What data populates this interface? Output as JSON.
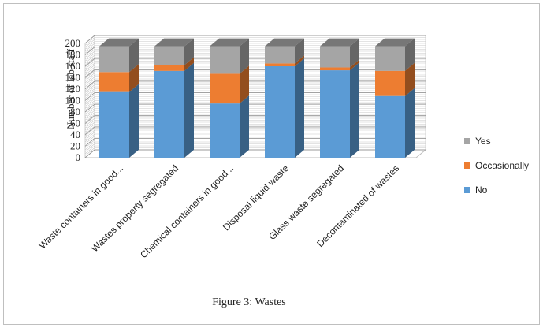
{
  "chart_data": {
    "type": "bar",
    "stacked": true,
    "style": "3d",
    "categories": [
      "Waste containers in good...",
      "Wastes property segregated",
      "Chemical containers in good...",
      "Disposal liquid waste",
      "Glass waste segregated",
      "Decontaminated of wastes"
    ],
    "series": [
      {
        "name": "No",
        "values": [
          115,
          152,
          95,
          160,
          153,
          108
        ],
        "color": "#5b9bd5"
      },
      {
        "name": "Occasionally",
        "values": [
          35,
          10,
          52,
          5,
          5,
          44
        ],
        "color": "#ed7d31"
      },
      {
        "name": "Yes",
        "values": [
          45,
          33,
          48,
          30,
          37,
          43
        ],
        "color": "#a5a5a5"
      }
    ],
    "ylabel": "Number of lab staff",
    "yticks": [
      0,
      20,
      40,
      60,
      80,
      100,
      120,
      140,
      160,
      180,
      200
    ],
    "ylim": [
      0,
      200
    ],
    "legend_position": "right",
    "legend_order": [
      "Yes",
      "Occasionally",
      "No"
    ],
    "grid": true
  },
  "caption": "Figure 3: Wastes"
}
